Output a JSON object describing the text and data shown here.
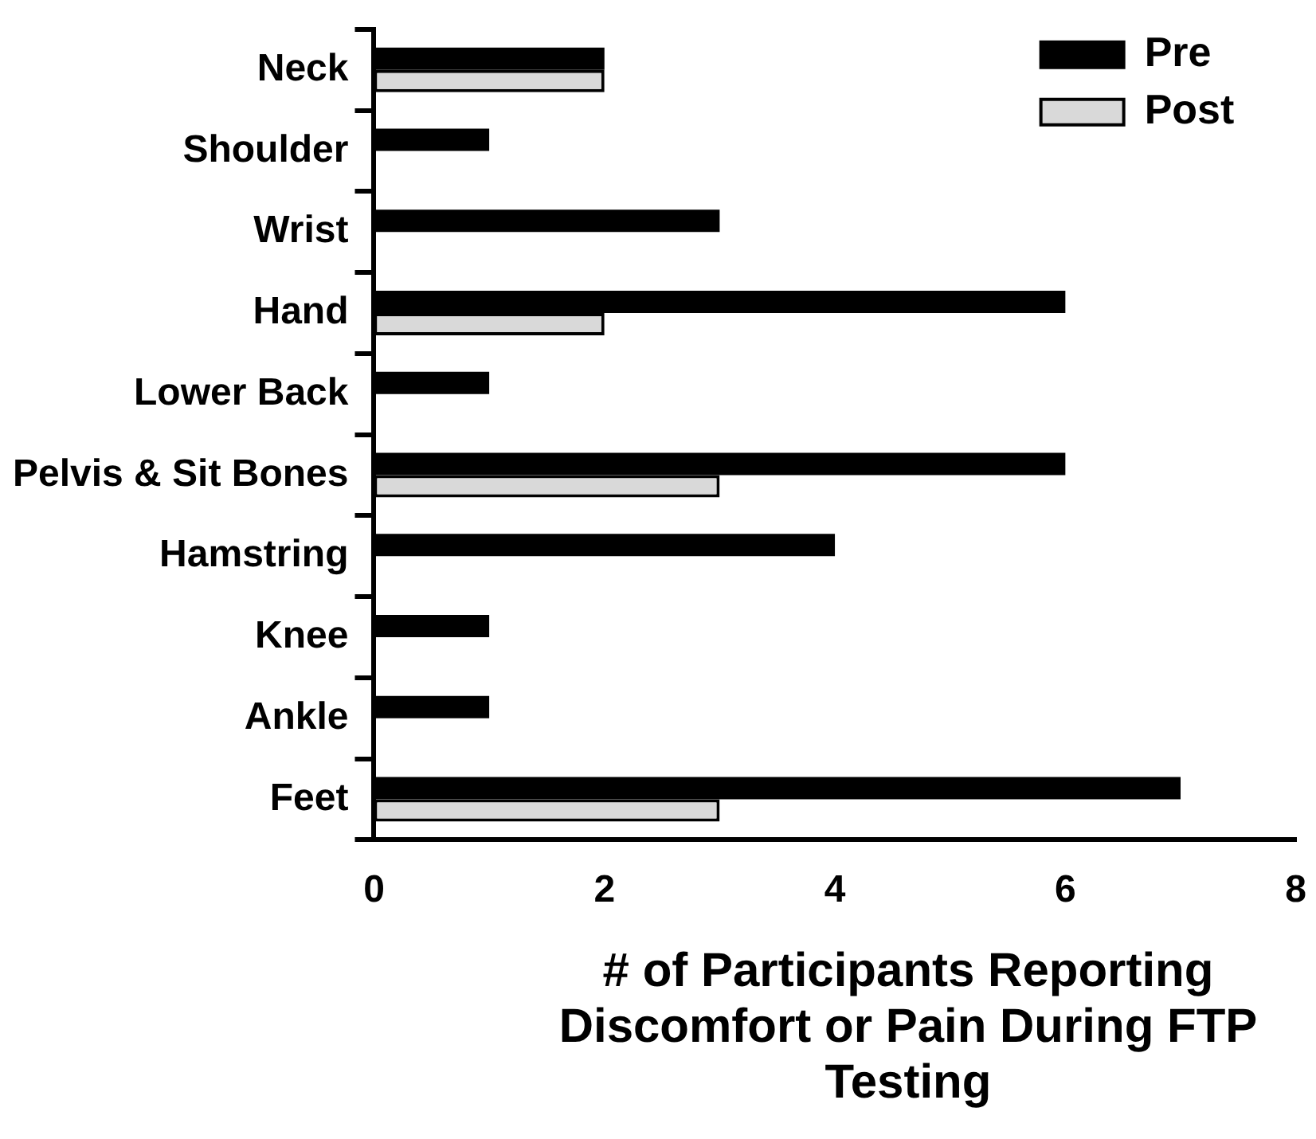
{
  "chart_data": {
    "type": "bar",
    "orientation": "horizontal",
    "xlabel": "# of Participants Reporting Discomfort or Pain During FTP Testing",
    "categories": [
      "Neck",
      "Shoulder",
      "Wrist",
      "Hand",
      "Lower Back",
      "Pelvis & Sit Bones",
      "Hamstring",
      "Knee",
      "Ankle",
      "Feet"
    ],
    "series": [
      {
        "name": "Pre",
        "color": "#000000",
        "values": [
          2,
          1,
          3,
          6,
          1,
          6,
          4,
          1,
          1,
          7
        ]
      },
      {
        "name": "Post",
        "color": "#d9d9d9",
        "values": [
          2,
          0,
          0,
          2,
          0,
          3,
          0,
          0,
          0,
          3
        ]
      }
    ],
    "xlim": [
      0,
      8
    ],
    "xticks": [
      0,
      2,
      4,
      6,
      8
    ],
    "grid": false,
    "legend": "top right"
  }
}
